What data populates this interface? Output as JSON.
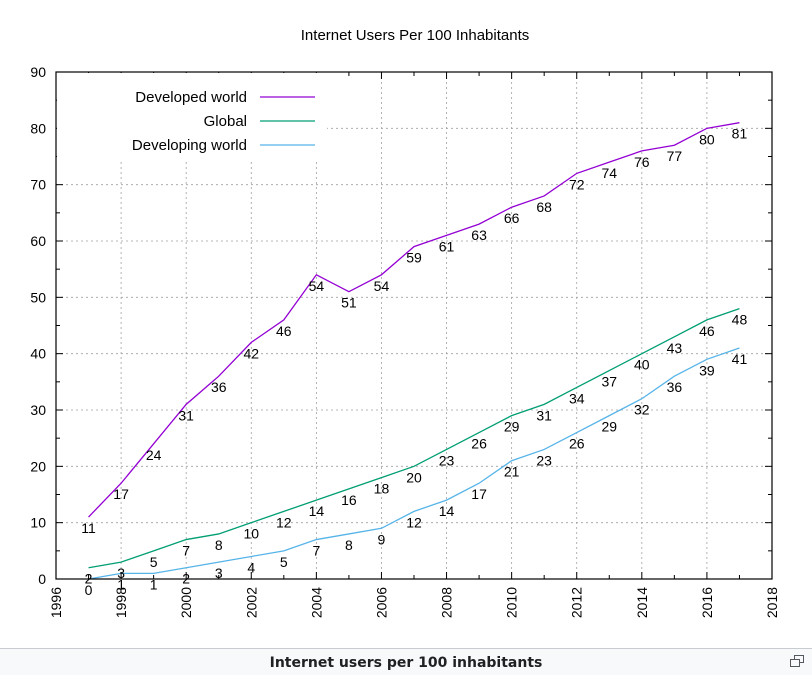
{
  "chart_data": {
    "type": "line",
    "title": "Internet Users Per 100 Inhabitants",
    "xlabel": "",
    "ylabel": "",
    "xlim": [
      1996,
      2018
    ],
    "ylim": [
      0,
      90
    ],
    "x_ticks": [
      "1996",
      "1998",
      "2000",
      "2002",
      "2004",
      "2006",
      "2008",
      "2010",
      "2012",
      "2014",
      "2016",
      "2018"
    ],
    "y_ticks": [
      "0",
      "10",
      "20",
      "30",
      "40",
      "50",
      "60",
      "70",
      "80",
      "90"
    ],
    "grid": true,
    "legend_position": "top-left",
    "x": [
      1997,
      1998,
      1999,
      2000,
      2001,
      2002,
      2003,
      2004,
      2005,
      2006,
      2007,
      2008,
      2009,
      2010,
      2011,
      2012,
      2013,
      2014,
      2015,
      2016,
      2017
    ],
    "series": [
      {
        "name": "Developed world",
        "color": "#9400d3",
        "values": [
          11,
          17,
          24,
          31,
          36,
          42,
          46,
          54,
          51,
          54,
          59,
          61,
          63,
          66,
          68,
          72,
          74,
          76,
          77,
          80,
          81
        ]
      },
      {
        "name": "Global",
        "color": "#009e73",
        "values": [
          2,
          3,
          5,
          7,
          8,
          10,
          12,
          14,
          16,
          18,
          20,
          23,
          26,
          29,
          31,
          34,
          37,
          40,
          43,
          46,
          48
        ]
      },
      {
        "name": "Developing world",
        "color": "#56b4e9",
        "values": [
          0,
          1,
          1,
          2,
          3,
          4,
          5,
          7,
          8,
          9,
          12,
          14,
          17,
          21,
          23,
          26,
          29,
          32,
          36,
          39,
          41
        ]
      }
    ],
    "labels": {
      "Developed world": [
        "11",
        "17",
        "24",
        "31",
        "36",
        "42",
        "46",
        "54",
        "51",
        "54",
        "59",
        "61",
        "63",
        "66",
        "68",
        "72",
        "74",
        "76",
        "77",
        "80",
        "81"
      ],
      "Global": [
        "2",
        "3",
        "5",
        "7",
        "8",
        "10",
        "12",
        "14",
        "16",
        "18",
        "20",
        "23",
        "26",
        "29",
        "31",
        "34",
        "37",
        "40",
        "43",
        "46",
        "48"
      ],
      "Developing world": [
        "0",
        "1",
        "1",
        "2",
        "3",
        "4",
        "5",
        "7",
        "8",
        "9",
        "12",
        "14",
        "17",
        "21",
        "23",
        "26",
        "29",
        "32",
        "36",
        "39",
        "41"
      ]
    }
  },
  "caption": "Internet users per 100 inhabitants",
  "icons": {
    "enlarge": "enlarge-icon"
  }
}
